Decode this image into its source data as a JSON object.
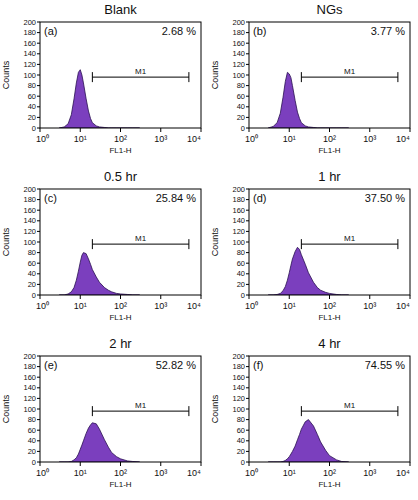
{
  "chart_data": [
    {
      "type": "area",
      "title": "Blank",
      "label": "(a)",
      "annotation": "2.68 %",
      "x_label": "FL1-H",
      "y_label": "Counts",
      "log": "x",
      "color": "#7b3fbe",
      "xlim": [
        1,
        10000
      ],
      "xticks": [
        {
          "value": 1,
          "label": "10⁰"
        },
        {
          "value": 10,
          "label": "10¹"
        },
        {
          "value": 100,
          "label": "10²"
        },
        {
          "value": 1000,
          "label": "10³"
        },
        {
          "value": 10000,
          "label": "10⁴"
        }
      ],
      "ylim": [
        0,
        200
      ],
      "yticks": [
        0,
        20,
        40,
        60,
        80,
        100,
        120,
        140,
        160,
        180,
        200
      ],
      "gate": {
        "label": "M1",
        "range": [
          20,
          5000
        ]
      },
      "x": [
        3,
        4,
        5,
        6,
        7,
        8,
        9,
        10,
        11,
        12,
        14,
        16,
        18,
        20,
        25,
        30,
        40,
        50,
        60,
        80,
        100,
        150,
        200,
        300
      ],
      "values": [
        0,
        2,
        8,
        25,
        55,
        85,
        105,
        110,
        100,
        85,
        55,
        32,
        18,
        10,
        4,
        2,
        1,
        0,
        0,
        0,
        0,
        0,
        0,
        0
      ]
    },
    {
      "type": "area",
      "title": "NGs",
      "label": "(b)",
      "annotation": "3.77 %",
      "x_label": "FL1-H",
      "y_label": "Counts",
      "log": "x",
      "color": "#7b3fbe",
      "xlim": [
        1,
        10000
      ],
      "xticks": [
        {
          "value": 1,
          "label": "10⁰"
        },
        {
          "value": 10,
          "label": "10¹"
        },
        {
          "value": 100,
          "label": "10²"
        },
        {
          "value": 1000,
          "label": "10³"
        },
        {
          "value": 10000,
          "label": "10⁴"
        }
      ],
      "ylim": [
        0,
        200
      ],
      "yticks": [
        0,
        20,
        40,
        60,
        80,
        100,
        120,
        140,
        160,
        180,
        200
      ],
      "gate": {
        "label": "M1",
        "range": [
          20,
          5000
        ]
      },
      "x": [
        3,
        4,
        5,
        6,
        7,
        8,
        9,
        10,
        11,
        12,
        14,
        16,
        18,
        20,
        25,
        30,
        40,
        50,
        60,
        80,
        100,
        150,
        200,
        300
      ],
      "values": [
        0,
        3,
        10,
        28,
        58,
        88,
        105,
        102,
        95,
        80,
        52,
        30,
        18,
        10,
        4,
        2,
        1,
        0,
        0,
        0,
        0,
        0,
        0,
        0
      ]
    },
    {
      "type": "area",
      "title": "0.5 hr",
      "label": "(c)",
      "annotation": "25.84 %",
      "x_label": "FL1-H",
      "y_label": "Counts",
      "log": "x",
      "color": "#7b3fbe",
      "xlim": [
        1,
        10000
      ],
      "xticks": [
        {
          "value": 1,
          "label": "10⁰"
        },
        {
          "value": 10,
          "label": "10¹"
        },
        {
          "value": 100,
          "label": "10²"
        },
        {
          "value": 1000,
          "label": "10³"
        },
        {
          "value": 10000,
          "label": "10⁴"
        }
      ],
      "ylim": [
        0,
        200
      ],
      "yticks": [
        0,
        20,
        40,
        60,
        80,
        100,
        120,
        140,
        160,
        180,
        200
      ],
      "gate": {
        "label": "M1",
        "range": [
          20,
          5000
        ]
      },
      "x": [
        3,
        4,
        5,
        6,
        7,
        8,
        9,
        10,
        11,
        12,
        14,
        16,
        18,
        20,
        25,
        30,
        40,
        50,
        60,
        80,
        100,
        150,
        200,
        300
      ],
      "values": [
        0,
        0,
        2,
        6,
        14,
        28,
        45,
        62,
        75,
        80,
        78,
        68,
        58,
        48,
        34,
        24,
        14,
        9,
        6,
        3,
        2,
        1,
        0,
        0
      ]
    },
    {
      "type": "area",
      "title": "1 hr",
      "label": "(d)",
      "annotation": "37.50 %",
      "x_label": "FL1-H",
      "y_label": "Counts",
      "log": "x",
      "color": "#7b3fbe",
      "xlim": [
        1,
        10000
      ],
      "xticks": [
        {
          "value": 1,
          "label": "10⁰"
        },
        {
          "value": 10,
          "label": "10¹"
        },
        {
          "value": 100,
          "label": "10²"
        },
        {
          "value": 1000,
          "label": "10³"
        },
        {
          "value": 10000,
          "label": "10⁴"
        }
      ],
      "ylim": [
        0,
        200
      ],
      "yticks": [
        0,
        20,
        40,
        60,
        80,
        100,
        120,
        140,
        160,
        180,
        200
      ],
      "gate": {
        "label": "M1",
        "range": [
          20,
          5000
        ]
      },
      "x": [
        3,
        4,
        5,
        6,
        7,
        8,
        9,
        10,
        11,
        12,
        14,
        16,
        18,
        20,
        25,
        30,
        40,
        50,
        60,
        80,
        100,
        150,
        200,
        300
      ],
      "values": [
        0,
        0,
        1,
        3,
        8,
        16,
        28,
        42,
        56,
        68,
        82,
        90,
        86,
        76,
        58,
        42,
        24,
        14,
        9,
        5,
        3,
        1,
        0,
        0
      ]
    },
    {
      "type": "area",
      "title": "2 hr",
      "label": "(e)",
      "annotation": "52.82 %",
      "x_label": "FL1-H",
      "y_label": "Counts",
      "log": "x",
      "color": "#7b3fbe",
      "xlim": [
        1,
        10000
      ],
      "xticks": [
        {
          "value": 1,
          "label": "10⁰"
        },
        {
          "value": 10,
          "label": "10¹"
        },
        {
          "value": 100,
          "label": "10²"
        },
        {
          "value": 1000,
          "label": "10³"
        },
        {
          "value": 10000,
          "label": "10⁴"
        }
      ],
      "ylim": [
        0,
        200
      ],
      "yticks": [
        0,
        20,
        40,
        60,
        80,
        100,
        120,
        140,
        160,
        180,
        200
      ],
      "gate": {
        "label": "M1",
        "range": [
          20,
          5000
        ]
      },
      "x": [
        3,
        4,
        5,
        6,
        7,
        8,
        9,
        10,
        11,
        12,
        14,
        16,
        18,
        20,
        25,
        30,
        40,
        50,
        60,
        80,
        100,
        150,
        200,
        300
      ],
      "values": [
        0,
        0,
        0,
        1,
        4,
        8,
        15,
        24,
        32,
        40,
        54,
        64,
        70,
        74,
        72,
        62,
        42,
        28,
        18,
        10,
        6,
        2,
        1,
        0
      ]
    },
    {
      "type": "area",
      "title": "4 hr",
      "label": "(f)",
      "annotation": "74.55 %",
      "x_label": "FL1-H",
      "y_label": "Counts",
      "log": "x",
      "color": "#7b3fbe",
      "xlim": [
        1,
        10000
      ],
      "xticks": [
        {
          "value": 1,
          "label": "10⁰"
        },
        {
          "value": 10,
          "label": "10¹"
        },
        {
          "value": 100,
          "label": "10²"
        },
        {
          "value": 1000,
          "label": "10³"
        },
        {
          "value": 10000,
          "label": "10⁴"
        }
      ],
      "ylim": [
        0,
        200
      ],
      "yticks": [
        0,
        20,
        40,
        60,
        80,
        100,
        120,
        140,
        160,
        180,
        200
      ],
      "gate": {
        "label": "M1",
        "range": [
          20,
          5000
        ]
      },
      "x": [
        3,
        4,
        5,
        6,
        7,
        8,
        9,
        10,
        11,
        12,
        14,
        16,
        18,
        20,
        25,
        30,
        40,
        50,
        60,
        80,
        100,
        150,
        200,
        300
      ],
      "values": [
        0,
        0,
        0,
        0,
        1,
        3,
        6,
        10,
        15,
        20,
        30,
        42,
        52,
        62,
        76,
        80,
        68,
        52,
        38,
        22,
        12,
        4,
        1,
        0
      ]
    }
  ]
}
